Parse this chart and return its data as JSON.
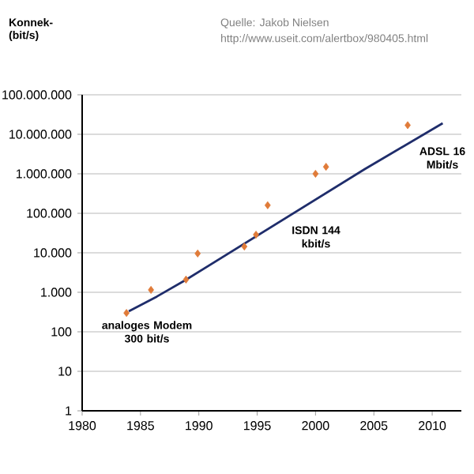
{
  "chart_data": {
    "type": "scatter",
    "grid": "y",
    "series": [
      {
        "color": "#e07b39",
        "marker": "diamond",
        "x": [
          1983.8,
          1985.9,
          1988.9,
          1989.9,
          1993.9,
          1994.9,
          1995.9,
          2000,
          2000.9,
          2007.9
        ],
        "values": [
          300,
          1150,
          2100,
          9600,
          14400,
          28800,
          160000,
          1000000,
          1500000,
          17000000
        ]
      },
      {
        "type": "line",
        "color": "#1f2d6b",
        "x": [
          1984,
          1986.4,
          1988.8,
          2004.2,
          2010.9
        ],
        "values": [
          330,
          780,
          2000,
          1300000,
          19000000
        ]
      }
    ],
    "log": "y",
    "xlim": [
      1980,
      2012.5
    ],
    "xticks": [
      1980,
      1985,
      1990,
      1995,
      2000,
      2005,
      2010
    ],
    "ylim": [
      1,
      100000000
    ],
    "yticks": [
      1,
      10,
      100,
      {
        "value": 1000,
        "label": "1.000"
      },
      {
        "value": 10000,
        "label": "10.000"
      },
      {
        "value": 100000,
        "label": "100.000"
      },
      {
        "value": 1000000,
        "label": "1.000.000"
      },
      {
        "value": 10000000,
        "label": "10.000.000"
      },
      {
        "value": 100000000,
        "label": "100.000.000"
      }
    ],
    "annotations": [
      "Konnek- (bit/s)",
      "Quelle: Jakob Nielsen",
      "http://www.useit.com/alertbox/980405.html",
      "analoges Modem 300 bit/s",
      "ISDN 144 kbit/s",
      "ADSL 16 Mbit/s"
    ]
  }
}
